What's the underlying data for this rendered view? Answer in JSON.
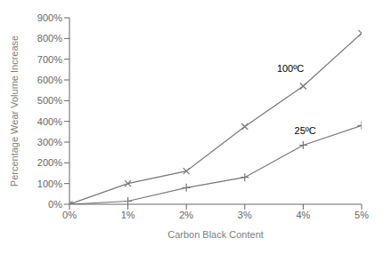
{
  "chart_data": {
    "type": "line",
    "x_label": "Carbon Black Content",
    "y_label": "Percentage Wear Volume Increase",
    "x": [
      0,
      1,
      2,
      3,
      4,
      5
    ],
    "xlim": [
      0,
      5
    ],
    "xticks": [
      {
        "value": 0,
        "label": "0%"
      },
      {
        "value": 1,
        "label": "1%"
      },
      {
        "value": 2,
        "label": "2%"
      },
      {
        "value": 3,
        "label": "3%"
      },
      {
        "value": 4,
        "label": "4%"
      },
      {
        "value": 5,
        "label": "5%"
      }
    ],
    "ylim": [
      0,
      900
    ],
    "yticks": [
      {
        "value": 0,
        "label": "0%"
      },
      {
        "value": 100,
        "label": "100%"
      },
      {
        "value": 200,
        "label": "200%"
      },
      {
        "value": 300,
        "label": "300%"
      },
      {
        "value": 400,
        "label": "400%"
      },
      {
        "value": 500,
        "label": "500%"
      },
      {
        "value": 600,
        "label": "600%"
      },
      {
        "value": 700,
        "label": "700%"
      },
      {
        "value": 800,
        "label": "800%"
      },
      {
        "value": 900,
        "label": "900%"
      }
    ],
    "series": [
      {
        "color": "#777777",
        "marker": "x",
        "values": [
          0,
          100,
          160,
          375,
          570,
          825
        ]
      },
      {
        "color": "#777777",
        "marker": "+",
        "values": [
          0,
          15,
          80,
          130,
          285,
          380
        ]
      }
    ],
    "annotations": [
      {
        "text": "100ºC",
        "x": 3.55,
        "y": 630
      },
      {
        "text": "25ºC",
        "x": 3.85,
        "y": 330
      }
    ],
    "grid": false
  }
}
